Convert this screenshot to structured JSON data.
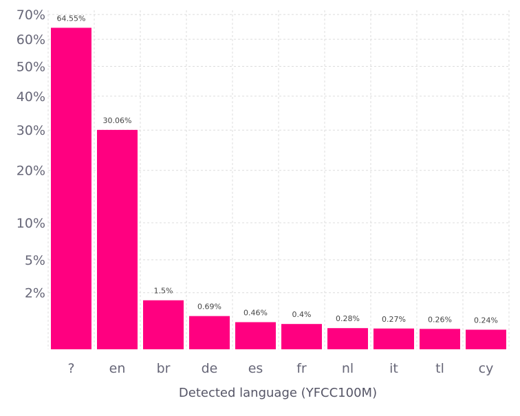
{
  "chart_data": {
    "type": "bar",
    "title": "",
    "xlabel": "Detected language (YFCC100M)",
    "ylabel": "",
    "yscale": "sqrt",
    "ylim": [
      0,
      70
    ],
    "categories": [
      "?",
      "en",
      "br",
      "de",
      "es",
      "fr",
      "nl",
      "it",
      "tl",
      "cy"
    ],
    "values": [
      64.55,
      30.06,
      1.5,
      0.69,
      0.46,
      0.4,
      0.28,
      0.27,
      0.26,
      0.24
    ],
    "data_labels": [
      "64.55%",
      "30.06%",
      "1.5%",
      "0.69%",
      "0.46%",
      "0.4%",
      "0.28%",
      "0.27%",
      "0.26%",
      "0.24%"
    ],
    "yticks": [
      2,
      5,
      10,
      20,
      30,
      40,
      50,
      60,
      70
    ],
    "ytick_labels": [
      "2%",
      "5%",
      "10%",
      "20%",
      "30%",
      "40%",
      "50%",
      "60%",
      "70%"
    ],
    "grid": true,
    "bar_color": "#ff0080"
  }
}
